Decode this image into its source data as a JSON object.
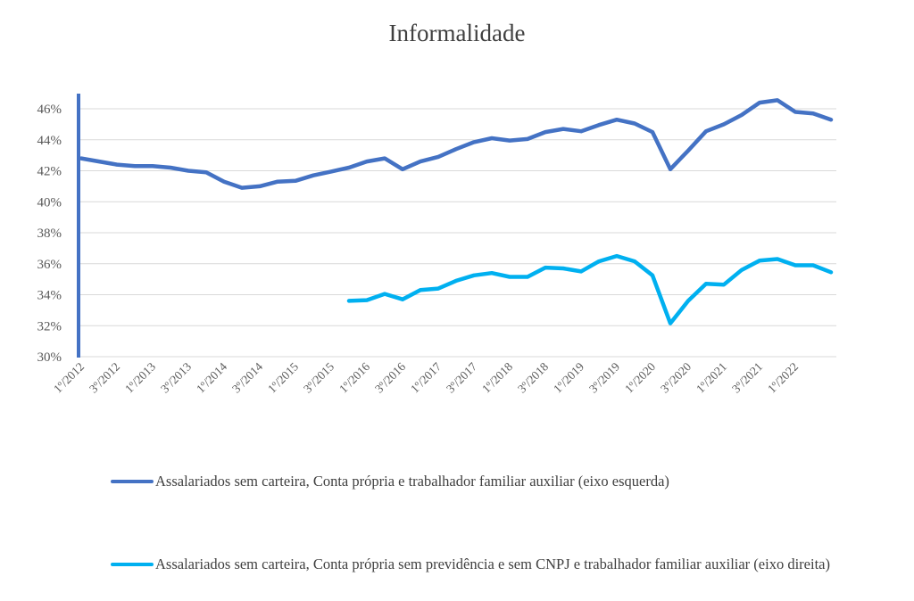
{
  "chart_data": {
    "type": "line",
    "title": "Informalidade",
    "xlabel": "",
    "ylabel": "",
    "ylim": [
      0.3,
      0.46
    ],
    "y_ticks": [
      "30%",
      "32%",
      "34%",
      "36%",
      "38%",
      "40%",
      "42%",
      "44%",
      "46%"
    ],
    "y_tick_values": [
      0.3,
      0.32,
      0.34,
      0.36,
      0.38,
      0.4,
      0.42,
      0.44,
      0.46
    ],
    "grid": true,
    "legend_position": "bottom",
    "x": [
      "1º/2012",
      "2º/2012",
      "3º/2012",
      "4º/2012",
      "1º/2013",
      "2º/2013",
      "3º/2013",
      "4º/2013",
      "1º/2014",
      "2º/2014",
      "3º/2014",
      "4º/2014",
      "1º/2015",
      "2º/2015",
      "3º/2015",
      "4º/2015",
      "1º/2016",
      "2º/2016",
      "3º/2016",
      "4º/2016",
      "1º/2017",
      "2º/2017",
      "3º/2017",
      "4º/2017",
      "1º/2018",
      "2º/2018",
      "3º/2018",
      "4º/2018",
      "1º/2019",
      "2º/2019",
      "3º/2019",
      "4º/2019",
      "1º/2020",
      "2º/2020",
      "3º/2020",
      "4º/2020",
      "1º/2021",
      "2º/2021",
      "3º/2021",
      "4º/2021",
      "1º/2022",
      "2º/2022",
      "3º/2022"
    ],
    "x_tick_labels": [
      "1º/2012",
      "3º/2012",
      "1º/2013",
      "3º/2013",
      "1º/2014",
      "3º/2014",
      "1º/2015",
      "3º/2015",
      "1º/2016",
      "3º/2016",
      "1º/2017",
      "3º/2017",
      "1º/2018",
      "3º/2018",
      "1º/2019",
      "3º/2019",
      "1º/2020",
      "3º/2020",
      "1º/2021",
      "3º/2021",
      "1º/2022"
    ],
    "series": [
      {
        "name": "Assalariados sem carteira, Conta própria e trabalhador familiar auxiliar (eixo esquerda)",
        "color": "#4472C4",
        "axis": "left",
        "values": [
          0.428,
          0.426,
          0.424,
          0.423,
          0.423,
          0.422,
          0.42,
          0.419,
          0.413,
          0.409,
          0.41,
          0.413,
          0.4135,
          0.417,
          0.4195,
          0.422,
          0.426,
          0.428,
          0.421,
          0.426,
          0.429,
          0.434,
          0.4385,
          0.441,
          0.4395,
          0.4405,
          0.445,
          0.447,
          0.4455,
          0.4495,
          0.453,
          0.4505,
          0.445,
          0.421,
          0.433,
          0.4455,
          0.45,
          0.456,
          0.464,
          0.4655,
          0.458,
          0.457,
          0.453
        ]
      },
      {
        "name": "Assalariados sem carteira, Conta própria sem previdência e sem CNPJ e trabalhador familiar auxiliar (eixo direita)",
        "color": "#00B0F0",
        "axis": "right",
        "values": [
          null,
          null,
          null,
          null,
          null,
          null,
          null,
          null,
          null,
          null,
          null,
          null,
          null,
          null,
          null,
          0.336,
          0.3365,
          0.3405,
          0.337,
          0.343,
          0.344,
          0.349,
          0.3525,
          0.354,
          0.3515,
          0.3515,
          0.3575,
          0.357,
          0.355,
          0.3615,
          0.365,
          0.3615,
          0.3525,
          0.3215,
          0.336,
          0.347,
          0.3465,
          0.356,
          0.362,
          0.363,
          0.359,
          0.359,
          0.3545
        ]
      }
    ]
  }
}
